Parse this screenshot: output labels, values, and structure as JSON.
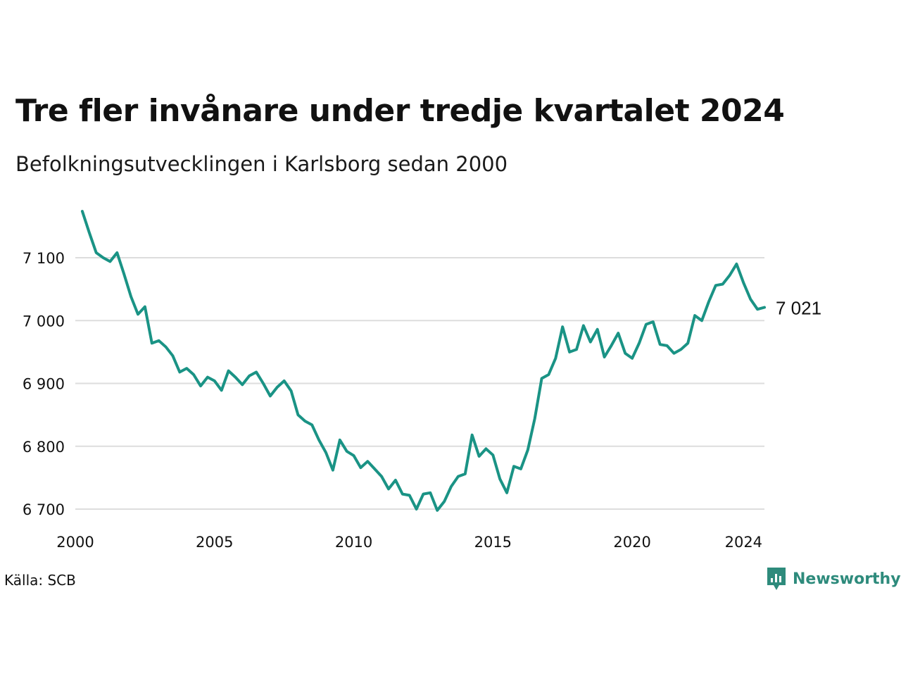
{
  "header": {
    "title": "Tre fler invånare under tredje kvartalet 2024",
    "subtitle": "Befolkningsutvecklingen i Karlsborg sedan 2000"
  },
  "footer": {
    "source": "Källa: SCB",
    "brand": "Newsworthy",
    "brand_icon": "newsworthy-logo-icon"
  },
  "colors": {
    "line": "#1a9385",
    "grid": "#dddddd",
    "brand": "#2e8b7c"
  },
  "chart_data": {
    "type": "line",
    "title": "Tre fler invånare under tredje kvartalet 2024",
    "subtitle": "Befolkningsutvecklingen i Karlsborg sedan 2000",
    "xlabel": "",
    "ylabel": "",
    "grid": "horizontal",
    "legend": "none",
    "xlim": [
      2000,
      2024.75
    ],
    "ylim": [
      6690,
      7180
    ],
    "x_ticks": [
      2000,
      2005,
      2010,
      2015,
      2020,
      2024
    ],
    "x_tick_labels": [
      "2000",
      "2005",
      "2010",
      "2015",
      "2020",
      "2024"
    ],
    "y_ticks": [
      6700,
      6800,
      6900,
      7000,
      7100
    ],
    "y_tick_labels": [
      "6 700",
      "6 800",
      "6 900",
      "7 000",
      "7 100"
    ],
    "end_label": "7 021",
    "series": [
      {
        "x": [
          2000.25,
          2000.5,
          2000.75,
          2001,
          2001.25,
          2001.5,
          2001.75,
          2002,
          2002.25,
          2002.5,
          2002.75,
          2003,
          2003.25,
          2003.5,
          2003.75,
          2004,
          2004.25,
          2004.5,
          2004.75,
          2005,
          2005.25,
          2005.5,
          2005.75,
          2006,
          2006.25,
          2006.5,
          2006.75,
          2007,
          2007.25,
          2007.5,
          2007.75,
          2008,
          2008.25,
          2008.5,
          2008.75,
          2009,
          2009.25,
          2009.5,
          2009.75,
          2010,
          2010.25,
          2010.5,
          2010.75,
          2011,
          2011.25,
          2011.5,
          2011.75,
          2012,
          2012.25,
          2012.5,
          2012.75,
          2013,
          2013.25,
          2013.5,
          2013.75,
          2014,
          2014.25,
          2014.5,
          2014.75,
          2015,
          2015.25,
          2015.5,
          2015.75,
          2016,
          2016.25,
          2016.5,
          2016.75,
          2017,
          2017.25,
          2017.5,
          2017.75,
          2018,
          2018.25,
          2018.5,
          2018.75,
          2019,
          2019.25,
          2019.5,
          2019.75,
          2020,
          2020.25,
          2020.5,
          2020.75,
          2021,
          2021.25,
          2021.5,
          2021.75,
          2022,
          2022.25,
          2022.5,
          2022.75,
          2023,
          2023.25,
          2023.5,
          2023.75,
          2024,
          2024.25,
          2024.5,
          2024.75
        ],
        "values": [
          7174,
          7140,
          7108,
          7100,
          7094,
          7108,
          7074,
          7038,
          7010,
          7022,
          6964,
          6968,
          6958,
          6944,
          6918,
          6924,
          6914,
          6896,
          6910,
          6904,
          6889,
          6920,
          6910,
          6898,
          6912,
          6918,
          6900,
          6880,
          6894,
          6904,
          6888,
          6850,
          6840,
          6834,
          6810,
          6790,
          6762,
          6810,
          6792,
          6785,
          6766,
          6776,
          6764,
          6752,
          6732,
          6746,
          6724,
          6722,
          6700,
          6724,
          6726,
          6698,
          6712,
          6736,
          6752,
          6756,
          6818,
          6784,
          6796,
          6786,
          6748,
          6726,
          6768,
          6764,
          6794,
          6844,
          6908,
          6914,
          6940,
          6990,
          6950,
          6954,
          6992,
          6966,
          6986,
          6942,
          6960,
          6980,
          6948,
          6940,
          6964,
          6994,
          6998,
          6962,
          6960,
          6948,
          6954,
          6964,
          7008,
          7000,
          7030,
          7056,
          7058,
          7072,
          7090,
          7060,
          7034,
          7018,
          7021
        ]
      }
    ]
  }
}
